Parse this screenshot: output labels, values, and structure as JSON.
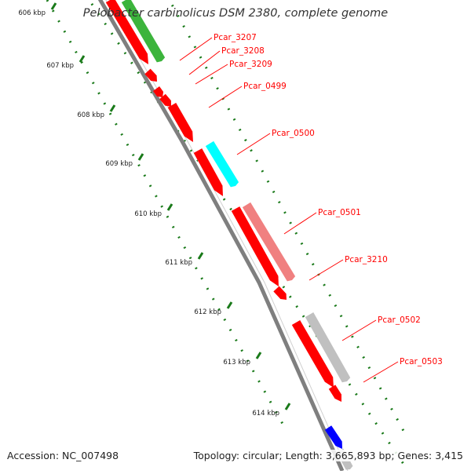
{
  "title": "Pelobacter carbinolicus DSM 2380, complete genome",
  "footer": {
    "accession": "Accession: NC_007498",
    "topology": "Topology: circular; Length: 3,665,893 bp; Genes: 3,415"
  },
  "axis": {
    "tick_labels": [
      "606 kbp",
      "607 kbp",
      "608 kbp",
      "609 kbp",
      "610 kbp",
      "611 kbp",
      "612 kbp",
      "613 kbp",
      "614 kbp"
    ]
  },
  "gene_labels": [
    "Pcar_3207",
    "Pcar_3208",
    "Pcar_3209",
    "Pcar_0499",
    "Pcar_0500",
    "Pcar_0501",
    "Pcar_3210",
    "Pcar_0502",
    "Pcar_0503"
  ],
  "colors": {
    "backbone": "#7f7f7f",
    "tick": "#1a7a1a",
    "gene_red": "#ff0000",
    "gene_green": "#3cb43c",
    "gene_cyan": "#00ffff",
    "gene_pink": "#f08080",
    "gene_gray": "#c0c0c0",
    "gene_blue": "#0000ff",
    "label": "#ff0000"
  }
}
